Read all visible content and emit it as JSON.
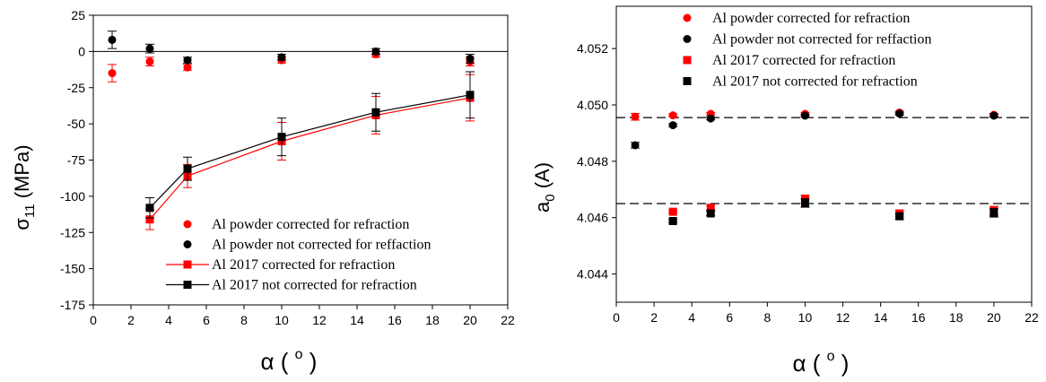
{
  "chart_data": [
    {
      "type": "scatter",
      "title": "",
      "xlabel": "α ( o )",
      "ylabel": "σ11 (MPa)",
      "xlim": [
        0,
        22
      ],
      "ylim": [
        -175,
        25
      ],
      "xticks": [
        0,
        2,
        4,
        6,
        8,
        10,
        12,
        14,
        16,
        18,
        20,
        22
      ],
      "yticks": [
        25,
        0,
        -25,
        -50,
        -75,
        -100,
        -125,
        -150,
        -175
      ],
      "reference_line_y": 0,
      "legend_position": "bottom-right",
      "grid": false,
      "series": [
        {
          "name": "Al powder corrected for refraction",
          "marker": "circle",
          "color": "#ff0000",
          "line": false,
          "x": [
            1,
            3,
            5,
            10,
            15,
            20
          ],
          "y": [
            -15,
            -7,
            -11,
            -6,
            -2,
            -7
          ],
          "err": [
            6,
            3,
            2,
            2,
            2,
            3
          ]
        },
        {
          "name": "Al powder not corrected for reffaction",
          "marker": "circle",
          "color": "#000000",
          "line": false,
          "x": [
            1,
            3,
            5,
            10,
            15,
            20
          ],
          "y": [
            8,
            2,
            -6,
            -4,
            0,
            -5
          ],
          "err": [
            6,
            3,
            2,
            2,
            2,
            3
          ]
        },
        {
          "name": "Al 2017 corrected for refraction",
          "marker": "square",
          "color": "#ff0000",
          "line": true,
          "x": [
            3,
            5,
            10,
            15,
            20
          ],
          "y": [
            -116,
            -86,
            -62,
            -44,
            -32
          ],
          "err": [
            7,
            8,
            13,
            13,
            16
          ]
        },
        {
          "name": "Al 2017 not corrected for refraction",
          "marker": "square",
          "color": "#000000",
          "line": true,
          "x": [
            3,
            5,
            10,
            15,
            20
          ],
          "y": [
            -108,
            -81,
            -59,
            -42,
            -30
          ],
          "err": [
            7,
            8,
            13,
            13,
            16
          ]
        }
      ]
    },
    {
      "type": "scatter",
      "title": "",
      "xlabel": "α ( o )",
      "ylabel": "a0 (A)",
      "xlim": [
        0,
        22
      ],
      "ylim": [
        4.043,
        4.0535
      ],
      "xticks": [
        0,
        2,
        4,
        6,
        8,
        10,
        12,
        14,
        16,
        18,
        20,
        22
      ],
      "yticks": [
        4.044,
        4.046,
        4.048,
        4.05,
        4.052
      ],
      "ytick_decimals": 3,
      "reference_lines_y": [
        4.04955,
        4.0465
      ],
      "legend_position": "top-right",
      "grid": false,
      "series": [
        {
          "name": "Al powder corrected for refraction",
          "marker": "circle",
          "color": "#ff0000",
          "x": [
            1,
            3,
            5,
            10,
            15,
            20
          ],
          "y": [
            4.04958,
            4.04963,
            4.04968,
            4.04968,
            4.04973,
            4.04965
          ],
          "err": [
            0.00012,
            5e-05,
            5e-05,
            5e-05,
            5e-05,
            5e-05
          ]
        },
        {
          "name": "Al powder not corrected for reffaction",
          "marker": "circle",
          "color": "#000000",
          "x": [
            1,
            3,
            5,
            10,
            15,
            20
          ],
          "y": [
            4.04857,
            4.04928,
            4.04952,
            4.04962,
            4.04969,
            4.04962
          ],
          "err": [
            0.0001,
            5e-05,
            5e-05,
            5e-05,
            5e-05,
            5e-05
          ]
        },
        {
          "name": "Al 2017 corrected for refraction",
          "marker": "square",
          "color": "#ff0000",
          "x": [
            3,
            5,
            10,
            15,
            20
          ],
          "y": [
            4.04621,
            4.04635,
            4.04665,
            4.04615,
            4.04625
          ],
          "err": [
            5e-05,
            8e-05,
            0.00015,
            0.0001,
            0.00015
          ]
        },
        {
          "name": "Al 2017 not corrected for refraction",
          "marker": "square",
          "color": "#000000",
          "x": [
            3,
            5,
            10,
            15,
            20
          ],
          "y": [
            4.04588,
            4.04615,
            4.04652,
            4.04605,
            4.04617
          ],
          "err": [
            5e-05,
            8e-05,
            0.00015,
            0.0001,
            0.00015
          ]
        }
      ]
    }
  ]
}
